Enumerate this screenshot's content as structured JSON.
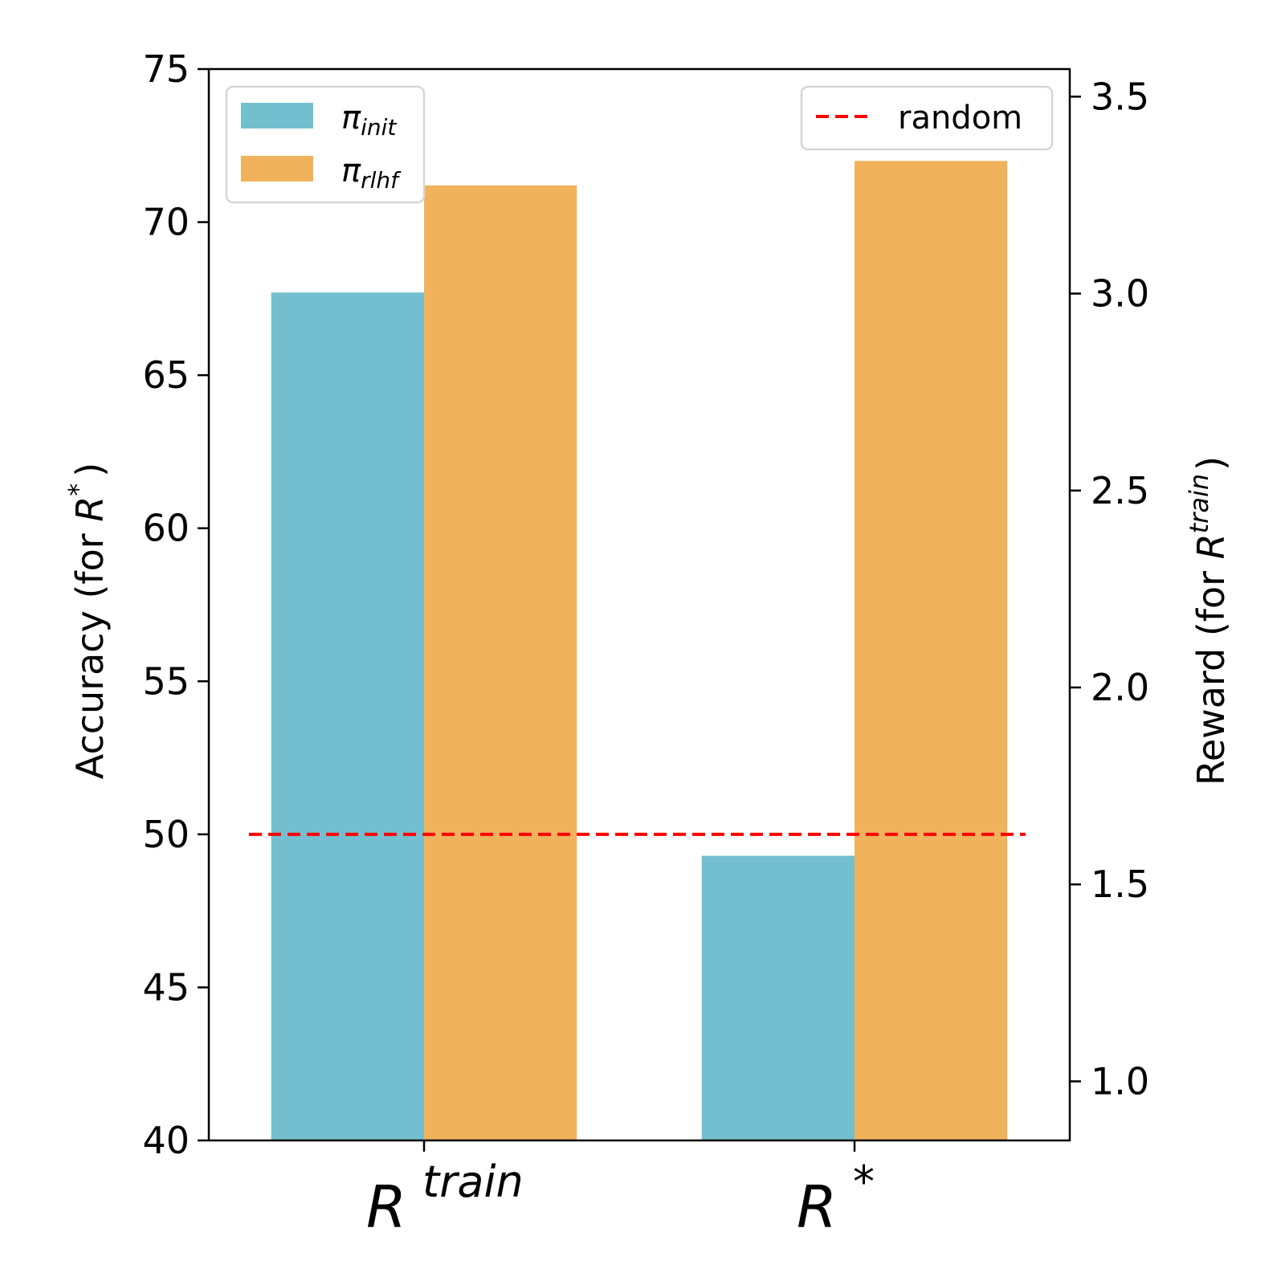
{
  "chart_data": {
    "type": "bar",
    "categories": [
      {
        "base": "R",
        "sup": "train"
      },
      {
        "base": "R",
        "sup": "*"
      }
    ],
    "series": [
      {
        "name_base": "π",
        "name_sub": "init",
        "color": "#74bfcf",
        "values": [
          67.7,
          49.3
        ]
      },
      {
        "name_base": "π",
        "name_sub": "rlhf",
        "color": "#f0b35c",
        "values": [
          71.2,
          72.0
        ]
      }
    ],
    "reference_line": {
      "name": "random",
      "value": 50,
      "color": "#ff0000",
      "style": "dashed"
    },
    "left_axis": {
      "label_text": "Accuracy (for ",
      "label_var": "R",
      "label_sup": "*",
      "label_close": ")",
      "ylim": [
        40,
        75
      ],
      "ticks": [
        "40",
        "45",
        "50",
        "55",
        "60",
        "65",
        "70",
        "75"
      ]
    },
    "right_axis": {
      "label_text": "Reward (for ",
      "label_var": "R",
      "label_sup": "train",
      "label_close": ")",
      "ylim": [
        0.85,
        3.57
      ],
      "ticks": [
        "1.0",
        "1.5",
        "2.0",
        "2.5",
        "3.0",
        "3.5"
      ]
    },
    "legend_left_placement": "top-left",
    "legend_right_placement": "top-right",
    "grid": false
  }
}
